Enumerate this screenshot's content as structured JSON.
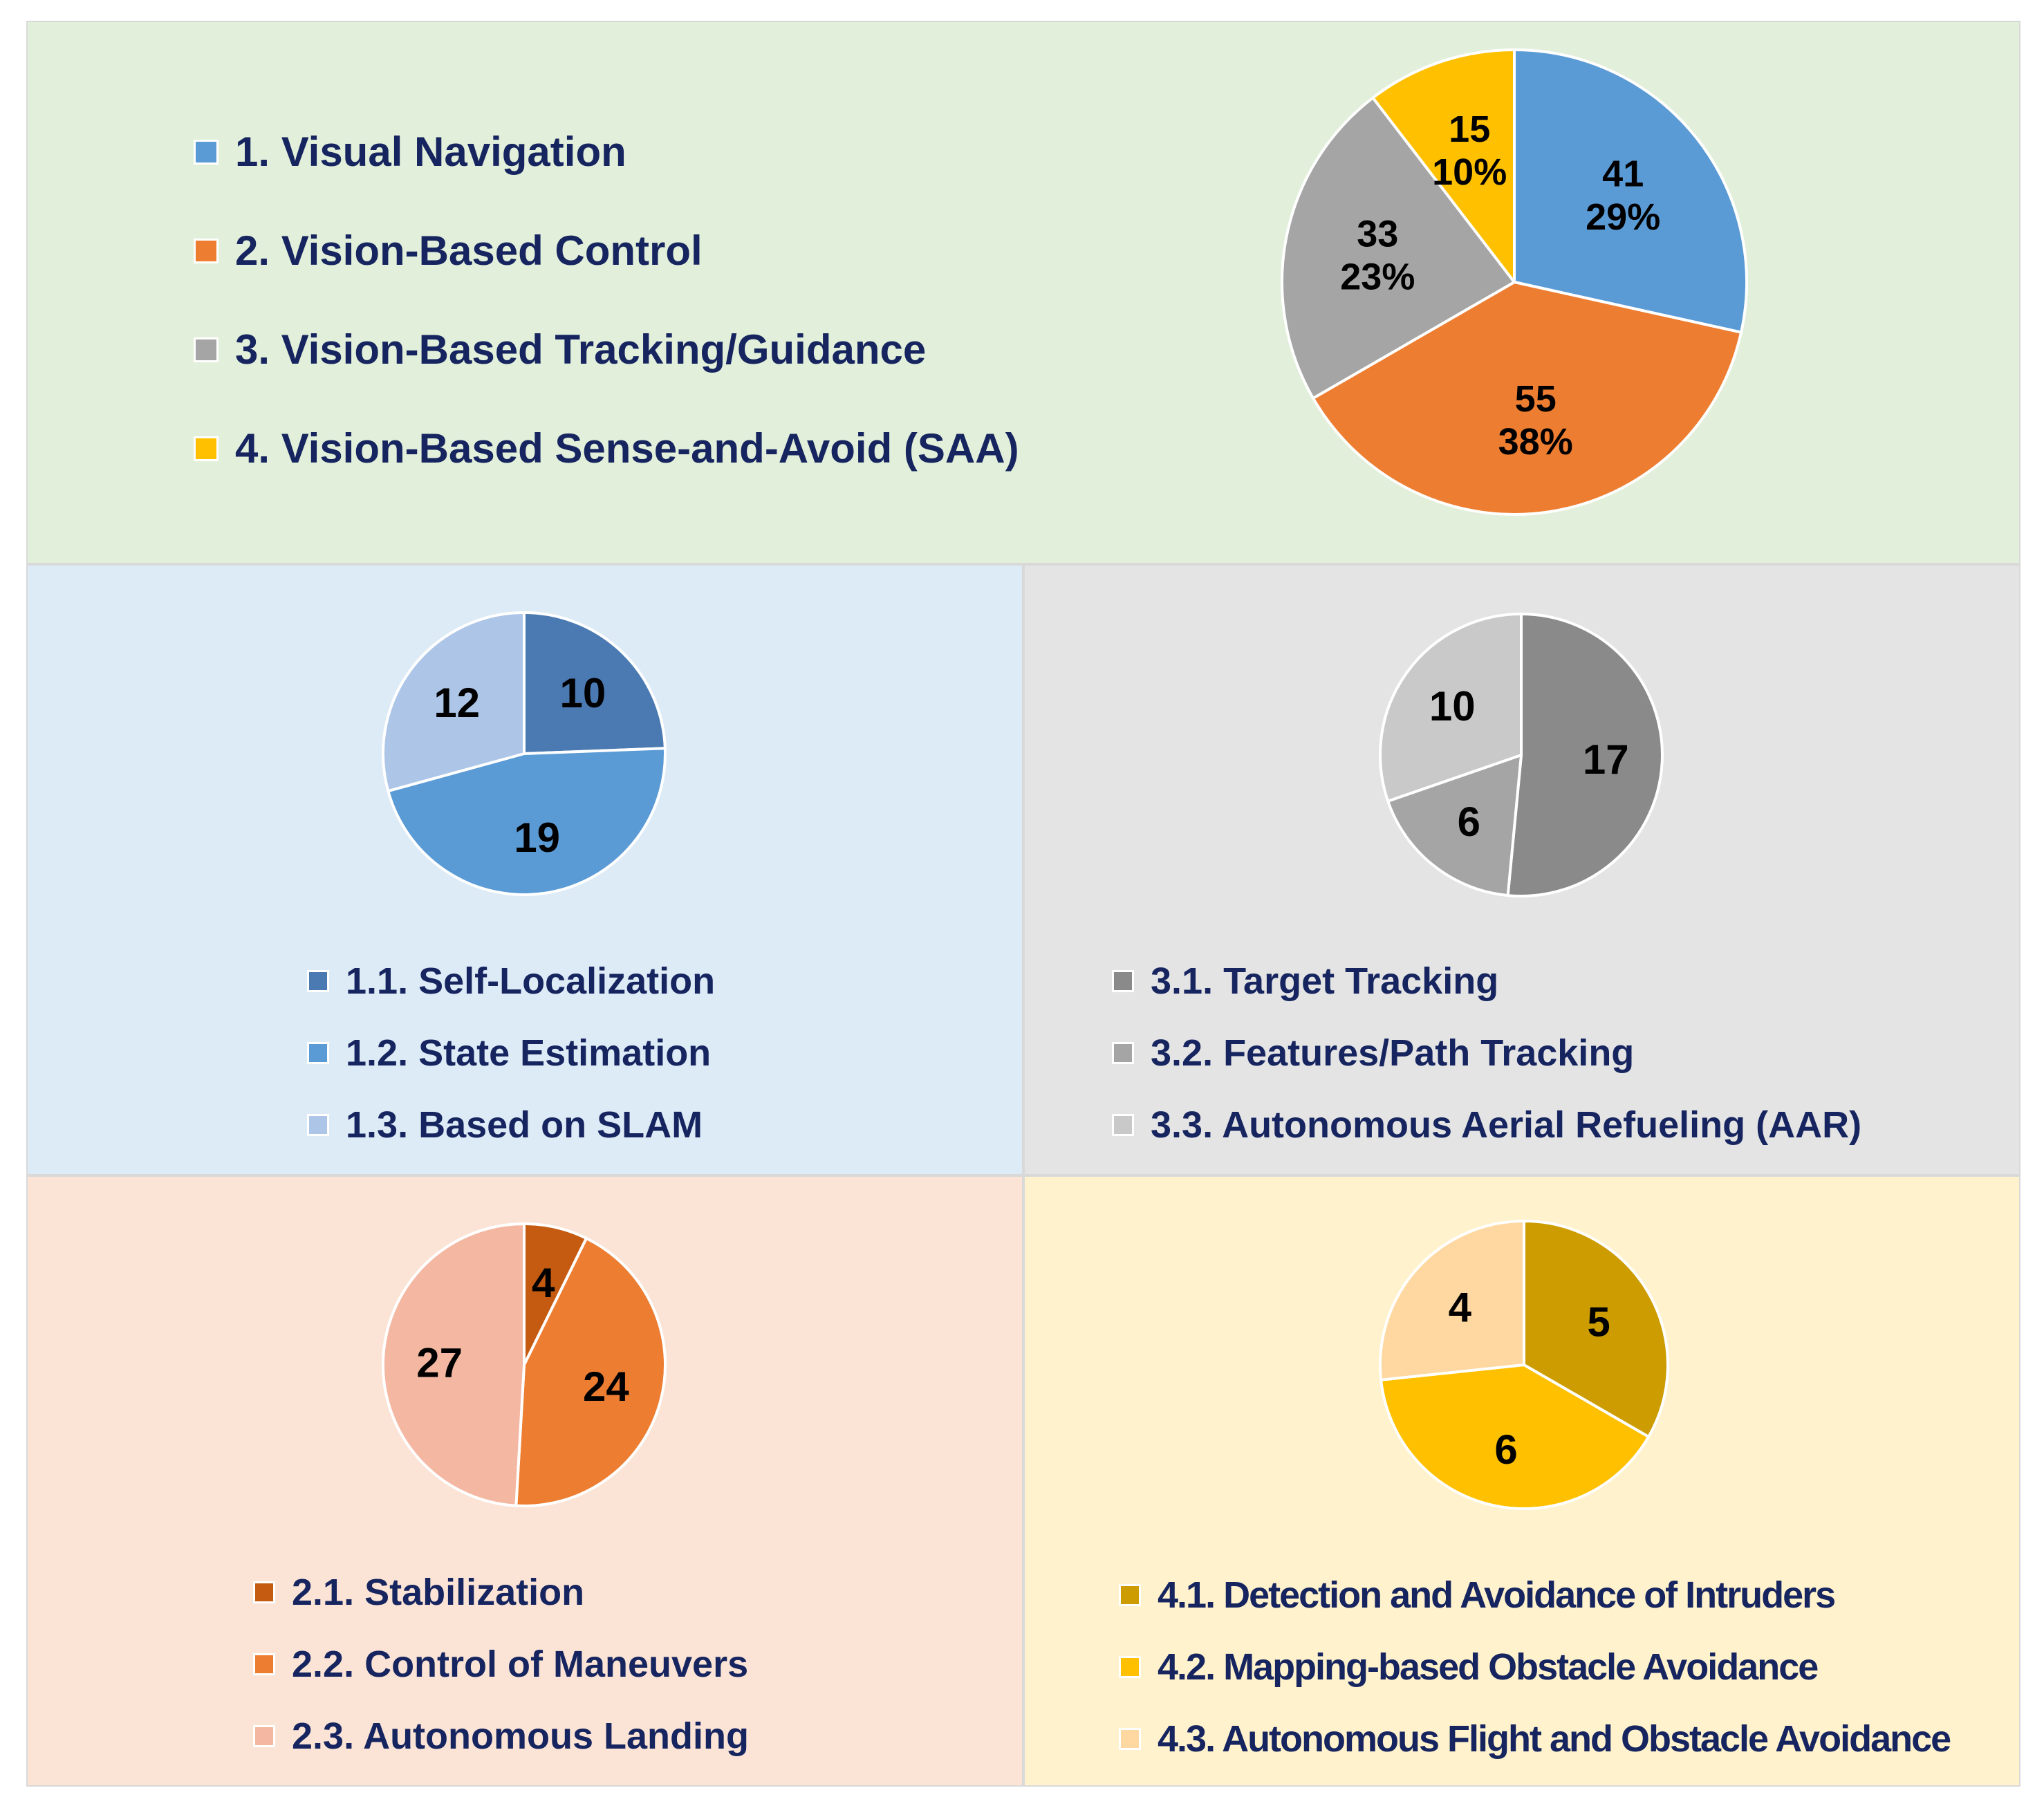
{
  "colors": {
    "label": "#16255f",
    "slice_border": "#ffffff"
  },
  "chart_data": [
    {
      "id": "main",
      "type": "pie",
      "title": "",
      "show_percent": true,
      "legend_position": "left",
      "slices": [
        {
          "label": "1. Visual Navigation",
          "value": 41,
          "percent": "29%",
          "color": "#5b9bd5"
        },
        {
          "label": "2. Vision-Based Control",
          "value": 55,
          "percent": "38%",
          "color": "#ed7d31"
        },
        {
          "label": "3. Vision-Based Tracking/Guidance",
          "value": 33,
          "percent": "23%",
          "color": "#a5a5a5"
        },
        {
          "label": "4. Vision-Based Sense-and-Avoid (SAA)",
          "value": 15,
          "percent": "10%",
          "color": "#ffc000"
        }
      ]
    },
    {
      "id": "nav",
      "type": "pie",
      "title": "",
      "show_percent": false,
      "legend_position": "bottom",
      "slices": [
        {
          "label": "1.1. Self-Localization",
          "value": 10,
          "color": "#4a7ab1"
        },
        {
          "label": "1.2. State Estimation",
          "value": 19,
          "color": "#5b9bd5"
        },
        {
          "label": "1.3. Based on SLAM",
          "value": 12,
          "color": "#adc5e7"
        }
      ]
    },
    {
      "id": "track",
      "type": "pie",
      "title": "",
      "show_percent": false,
      "legend_position": "bottom",
      "slices": [
        {
          "label": "3.1. Target Tracking",
          "value": 17,
          "color": "#8a8a8a"
        },
        {
          "label": "3.2. Features/Path Tracking",
          "value": 6,
          "color": "#a5a5a5"
        },
        {
          "label": "3.3. Autonomous Aerial Refueling (AAR)",
          "value": 10,
          "color": "#c9c9c9"
        }
      ]
    },
    {
      "id": "ctrl",
      "type": "pie",
      "title": "",
      "show_percent": false,
      "legend_position": "bottom",
      "slices": [
        {
          "label": "2.1. Stabilization",
          "value": 4,
          "color": "#c55a11"
        },
        {
          "label": "2.2. Control of Maneuvers",
          "value": 24,
          "color": "#ed7d31"
        },
        {
          "label": "2.3. Autonomous Landing",
          "value": 27,
          "color": "#f4b8a2"
        }
      ]
    },
    {
      "id": "saa",
      "type": "pie",
      "title": "",
      "show_percent": false,
      "legend_position": "bottom",
      "slices": [
        {
          "label": "4.1. Detection and Avoidance of Intruders",
          "value": 5,
          "color": "#cc9c00"
        },
        {
          "label": "4.2. Mapping-based Obstacle Avoidance",
          "value": 6,
          "color": "#ffc000"
        },
        {
          "label": "4.3. Autonomous Flight and Obstacle Avoidance",
          "value": 4,
          "color": "#fed8a0"
        }
      ]
    }
  ]
}
